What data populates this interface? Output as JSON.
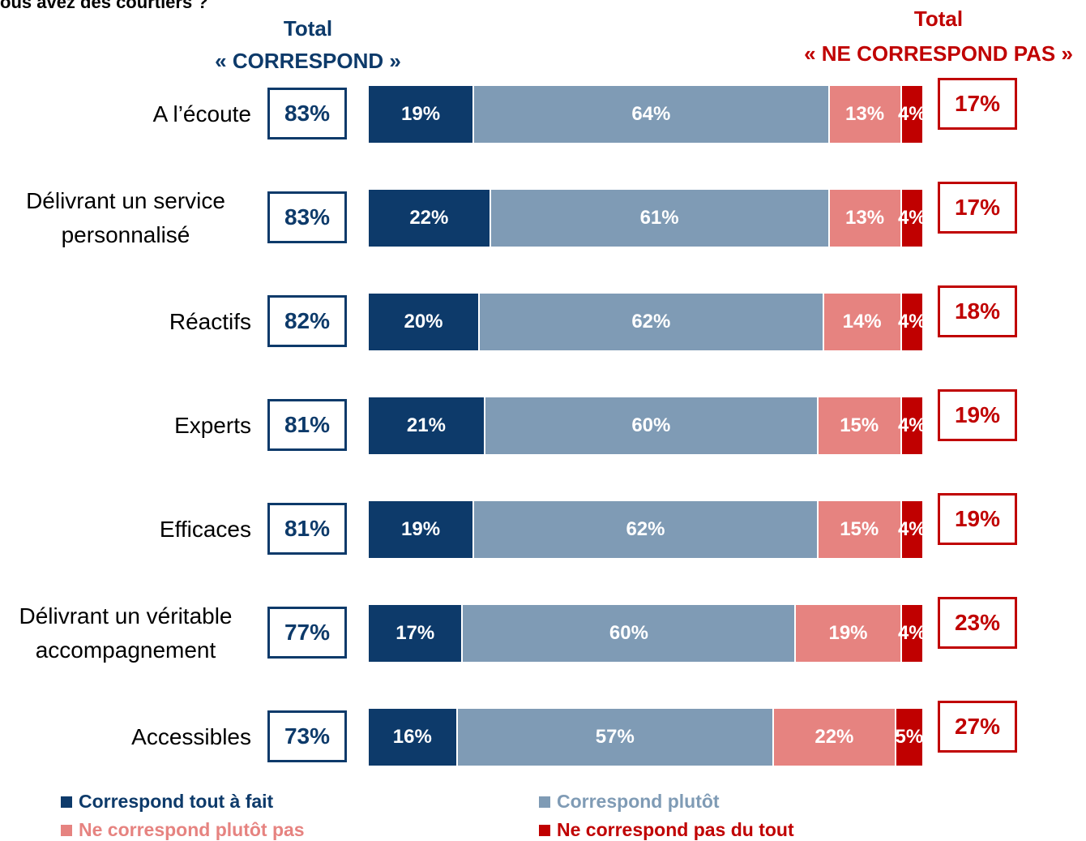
{
  "chart_data": {
    "type": "stacked_bar",
    "orientation": "horizontal",
    "title": "ous avez des courtiers ?",
    "categories": [
      "A l’écoute",
      "Délivrant un service personnalisé",
      "Réactifs",
      "Experts",
      "Efficaces",
      "Délivrant un véritable accompagnement",
      "Accessibles"
    ],
    "xlim": [
      0,
      100
    ],
    "series": [
      {
        "name": "Correspond tout à fait",
        "color": "#0d3a6a",
        "label_color": "#ffffff",
        "values": [
          19,
          22,
          20,
          21,
          19,
          17,
          16
        ],
        "value_labels": [
          "19%",
          "22%",
          "20%",
          "21%",
          "19%",
          "17%",
          "16%"
        ]
      },
      {
        "name": "Correspond plutôt",
        "color": "#7f9bb5",
        "label_color": "#ffffff",
        "values": [
          64,
          61,
          62,
          60,
          62,
          60,
          57
        ],
        "value_labels": [
          "64%",
          "61%",
          "62%",
          "60%",
          "62%",
          "60%",
          "57%"
        ]
      },
      {
        "name": "Ne correspond plutôt pas",
        "color": "#e68380",
        "label_color": "#ffffff",
        "values": [
          13,
          13,
          14,
          15,
          15,
          19,
          22
        ],
        "value_labels": [
          "13%",
          "13%",
          "14%",
          "15%",
          "15%",
          "19%",
          "22%"
        ]
      },
      {
        "name": "Ne correspond pas du tout",
        "color": "#c00000",
        "label_color": "#ffffff",
        "values": [
          4,
          4,
          4,
          4,
          4,
          4,
          5
        ],
        "value_labels": [
          "4%",
          "4%",
          "4%",
          "4%",
          "4%",
          "4%",
          "5%"
        ]
      }
    ],
    "totals_left": {
      "title": "Total",
      "subtitle": "« CORRESPOND »",
      "color": "#0d3a6a",
      "values": [
        83,
        83,
        82,
        81,
        81,
        77,
        73
      ],
      "value_labels": [
        "83%",
        "83%",
        "82%",
        "81%",
        "81%",
        "77%",
        "73%"
      ]
    },
    "totals_right": {
      "title": "Total",
      "subtitle": "« NE CORRESPOND PAS »",
      "color": "#c00000",
      "values": [
        17,
        17,
        18,
        19,
        19,
        23,
        27
      ],
      "value_labels": [
        "17%",
        "17%",
        "18%",
        "19%",
        "19%",
        "23%",
        "27%"
      ]
    },
    "legend": "bottom"
  }
}
